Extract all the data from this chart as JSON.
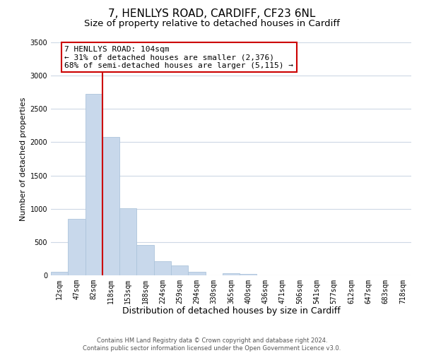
{
  "title": "7, HENLLYS ROAD, CARDIFF, CF23 6NL",
  "subtitle": "Size of property relative to detached houses in Cardiff",
  "xlabel": "Distribution of detached houses by size in Cardiff",
  "ylabel": "Number of detached properties",
  "bar_labels": [
    "12sqm",
    "47sqm",
    "82sqm",
    "118sqm",
    "153sqm",
    "188sqm",
    "224sqm",
    "259sqm",
    "294sqm",
    "330sqm",
    "365sqm",
    "400sqm",
    "436sqm",
    "471sqm",
    "506sqm",
    "541sqm",
    "577sqm",
    "612sqm",
    "647sqm",
    "683sqm",
    "718sqm"
  ],
  "bar_values": [
    55,
    850,
    2730,
    2080,
    1010,
    455,
    210,
    145,
    55,
    5,
    30,
    20,
    5,
    5,
    0,
    0,
    0,
    0,
    0,
    0,
    0
  ],
  "bar_color": "#c8d8eb",
  "bar_edge_color": "#adc4db",
  "vline_x_index": 2,
  "vline_color": "#cc0000",
  "annotation_line1": "7 HENLLYS ROAD: 104sqm",
  "annotation_line2": "← 31% of detached houses are smaller (2,376)",
  "annotation_line3": "68% of semi-detached houses are larger (5,115) →",
  "annotation_box_facecolor": "#ffffff",
  "annotation_box_edgecolor": "#cc0000",
  "ylim": [
    0,
    3500
  ],
  "yticks": [
    0,
    500,
    1000,
    1500,
    2000,
    2500,
    3000,
    3500
  ],
  "footer_line1": "Contains HM Land Registry data © Crown copyright and database right 2024.",
  "footer_line2": "Contains public sector information licensed under the Open Government Licence v3.0.",
  "background_color": "#ffffff",
  "grid_color": "#cdd8e5",
  "title_fontsize": 11,
  "subtitle_fontsize": 9.5,
  "xlabel_fontsize": 9,
  "ylabel_fontsize": 8,
  "tick_fontsize": 7,
  "annotation_fontsize": 8,
  "footer_fontsize": 6
}
